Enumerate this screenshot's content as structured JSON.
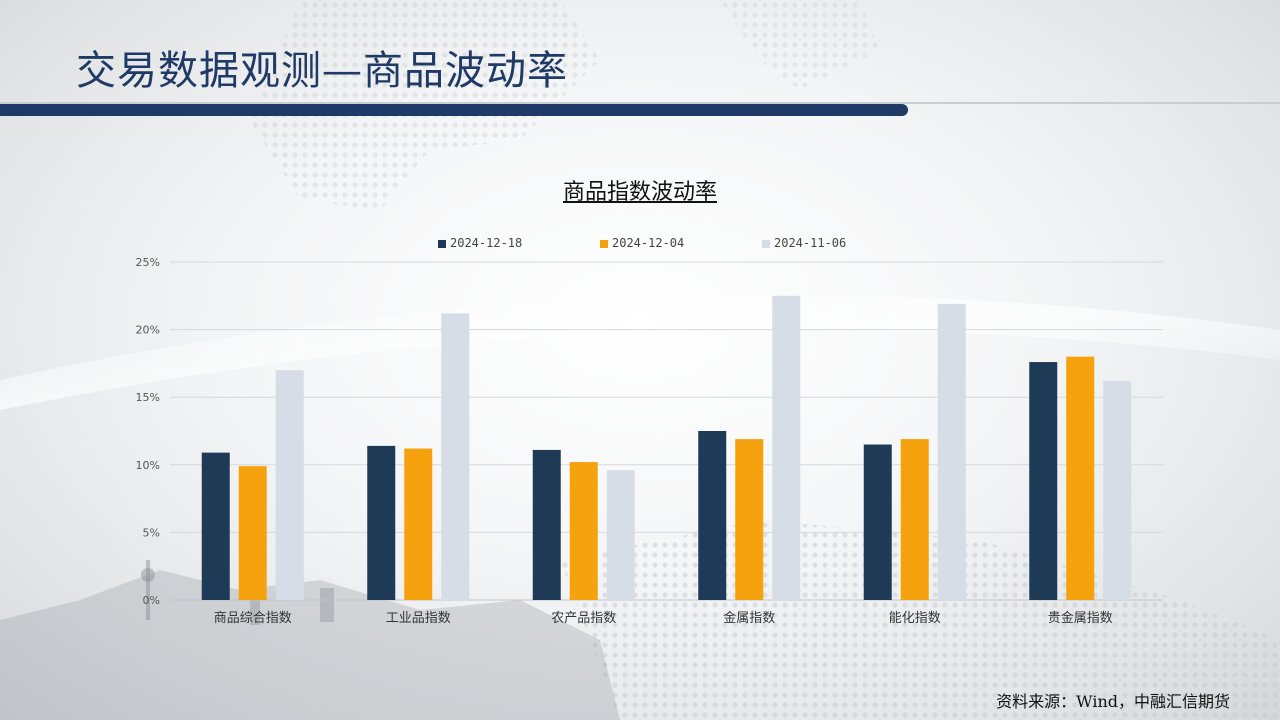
{
  "header": {
    "title": "交易数据观测—商品波动率"
  },
  "footer": {
    "source": "资料来源：Wind，中融汇信期货"
  },
  "colors": {
    "series1": "#1f3a56",
    "series2": "#f6a20e",
    "series3": "#d6dde6",
    "title": "#1f3a66"
  },
  "chart_data": {
    "type": "bar",
    "title": "商品指数波动率",
    "categories": [
      "商品综合指数",
      "工业品指数",
      "农产品指数",
      "金属指数",
      "能化指数",
      "贵金属指数"
    ],
    "series": [
      {
        "name": "2024-12-18",
        "values": [
          10.9,
          11.4,
          11.1,
          12.5,
          11.5,
          17.6
        ]
      },
      {
        "name": "2024-12-04",
        "values": [
          9.9,
          11.2,
          10.2,
          11.9,
          11.9,
          18.0
        ]
      },
      {
        "name": "2024-11-06",
        "values": [
          17.0,
          21.2,
          9.6,
          22.5,
          21.9,
          16.2
        ]
      }
    ],
    "yticks": [
      "0%",
      "5%",
      "10%",
      "15%",
      "20%",
      "25%"
    ],
    "ylim": [
      0,
      25
    ],
    "grid": true,
    "legend_position": "top"
  }
}
